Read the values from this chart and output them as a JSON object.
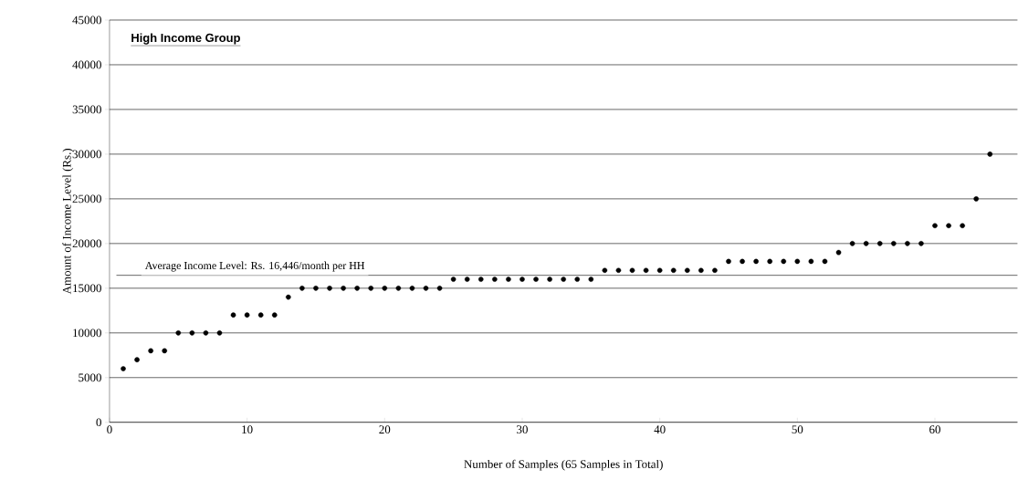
{
  "chart_data": {
    "type": "scatter",
    "title": "High Income Group",
    "xlabel": "Number of Samples (65 Samples in Total)",
    "ylabel": "Amount of Income Level (Rs.)",
    "x": [
      1,
      2,
      3,
      4,
      5,
      6,
      7,
      8,
      9,
      10,
      11,
      12,
      13,
      14,
      15,
      16,
      17,
      18,
      19,
      20,
      21,
      22,
      23,
      24,
      25,
      26,
      27,
      28,
      29,
      30,
      31,
      32,
      33,
      34,
      35,
      36,
      37,
      38,
      39,
      40,
      41,
      42,
      43,
      44,
      45,
      46,
      47,
      48,
      49,
      50,
      51,
      52,
      53,
      54,
      55,
      56,
      57,
      58,
      59,
      60,
      61,
      62,
      63,
      64
    ],
    "series": [
      {
        "color": "#000000",
        "values": [
          6000,
          7000,
          8000,
          8000,
          10000,
          10000,
          10000,
          10000,
          12000,
          12000,
          12000,
          12000,
          14000,
          15000,
          15000,
          15000,
          15000,
          15000,
          15000,
          15000,
          15000,
          15000,
          15000,
          15000,
          16000,
          16000,
          16000,
          16000,
          16000,
          16000,
          16000,
          16000,
          16000,
          16000,
          16000,
          17000,
          17000,
          17000,
          17000,
          17000,
          17000,
          17000,
          17000,
          17000,
          18000,
          18000,
          18000,
          18000,
          18000,
          18000,
          18000,
          18000,
          19000,
          20000,
          20000,
          20000,
          20000,
          20000,
          20000,
          22000,
          22000,
          22000,
          25000,
          30000
        ]
      }
    ],
    "xlim": [
      0,
      66
    ],
    "ylim": [
      0,
      45000
    ],
    "xticks": [
      0,
      10,
      20,
      30,
      40,
      50,
      60
    ],
    "yticks": [
      0,
      5000,
      10000,
      15000,
      20000,
      25000,
      30000,
      35000,
      40000,
      45000
    ],
    "grid": "y",
    "ref_lines": [
      {
        "axis": "y",
        "value": 16446,
        "label": "Average Income Level: Rs. 16,446/month per HH",
        "color": "#808080"
      }
    ]
  }
}
